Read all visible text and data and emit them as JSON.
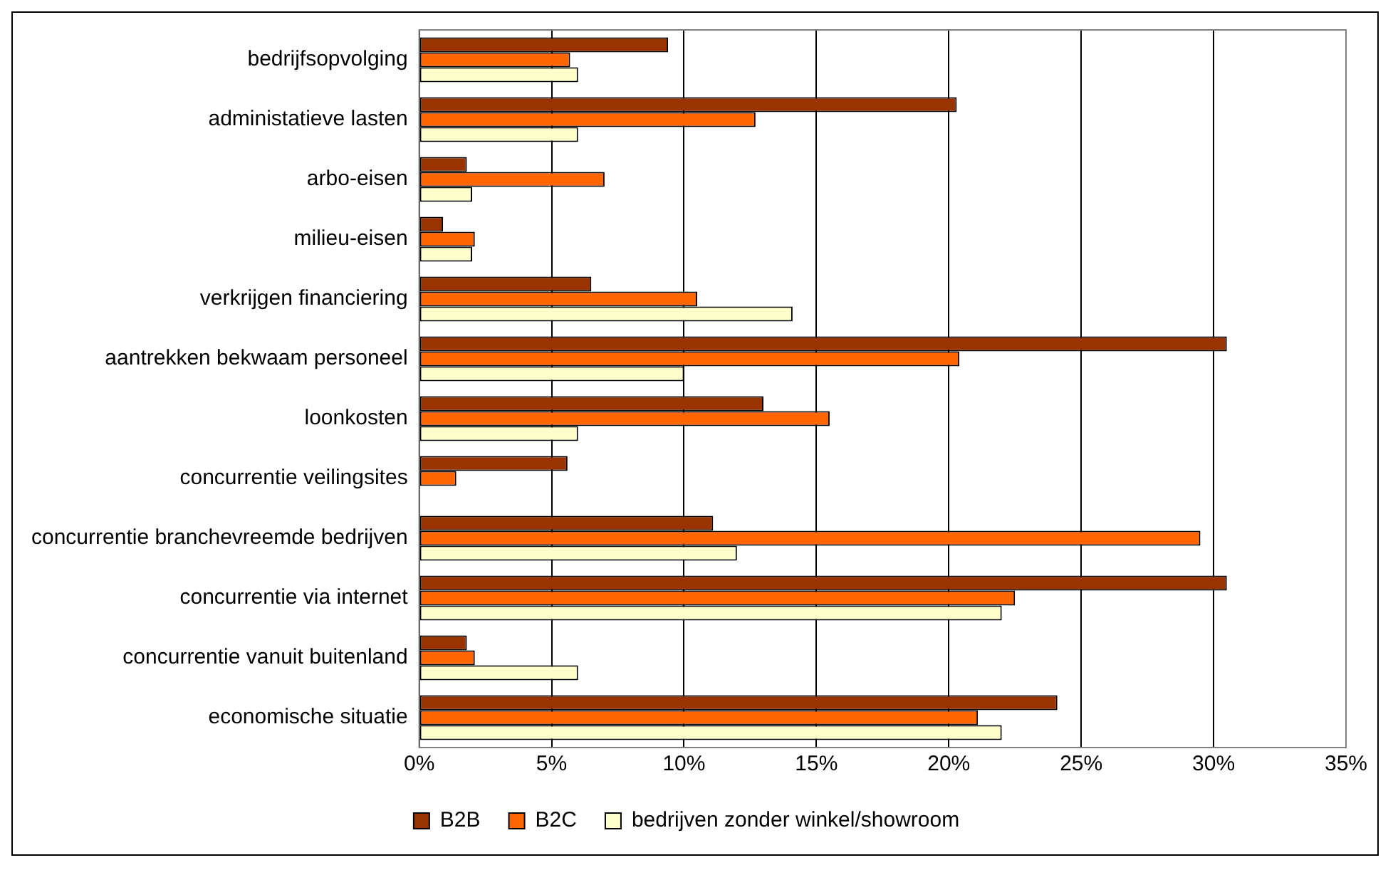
{
  "chart_data": {
    "type": "bar",
    "orientation": "horizontal",
    "categories": [
      "bedrijfsopvolging",
      "administatieve lasten",
      "arbo-eisen",
      "milieu-eisen",
      "verkrijgen financiering",
      "aantrekken bekwaam personeel",
      "loonkosten",
      "concurrentie veilingsites",
      "concurrentie branchevreemde bedrijven",
      "concurrentie via internet",
      "concurrentie vanuit buitenland",
      "economische situatie"
    ],
    "series": [
      {
        "name": "B2B",
        "color": "#993300",
        "values": [
          9.4,
          20.3,
          1.8,
          0.9,
          6.5,
          30.5,
          13.0,
          5.6,
          11.1,
          30.5,
          1.8,
          24.1
        ]
      },
      {
        "name": "B2C",
        "color": "#ff6600",
        "values": [
          5.7,
          12.7,
          7.0,
          2.1,
          10.5,
          20.4,
          15.5,
          1.4,
          29.5,
          22.5,
          2.1,
          21.1
        ]
      },
      {
        "name": "bedrijven zonder winkel/showroom",
        "color": "#ffffcc",
        "values": [
          6.0,
          6.0,
          2.0,
          2.0,
          14.1,
          10.0,
          6.0,
          null,
          12.0,
          22.0,
          6.0,
          22.0
        ]
      }
    ],
    "xlim": [
      0,
      35
    ],
    "xticks": [
      {
        "value": 0,
        "label": "0%"
      },
      {
        "value": 5,
        "label": "5%"
      },
      {
        "value": 10,
        "label": "10%"
      },
      {
        "value": 15,
        "label": "15%"
      },
      {
        "value": 20,
        "label": "20%"
      },
      {
        "value": 25,
        "label": "25%"
      },
      {
        "value": 30,
        "label": "30%"
      },
      {
        "value": 35,
        "label": "35%"
      }
    ],
    "grid": "x",
    "legend": "bottom"
  }
}
